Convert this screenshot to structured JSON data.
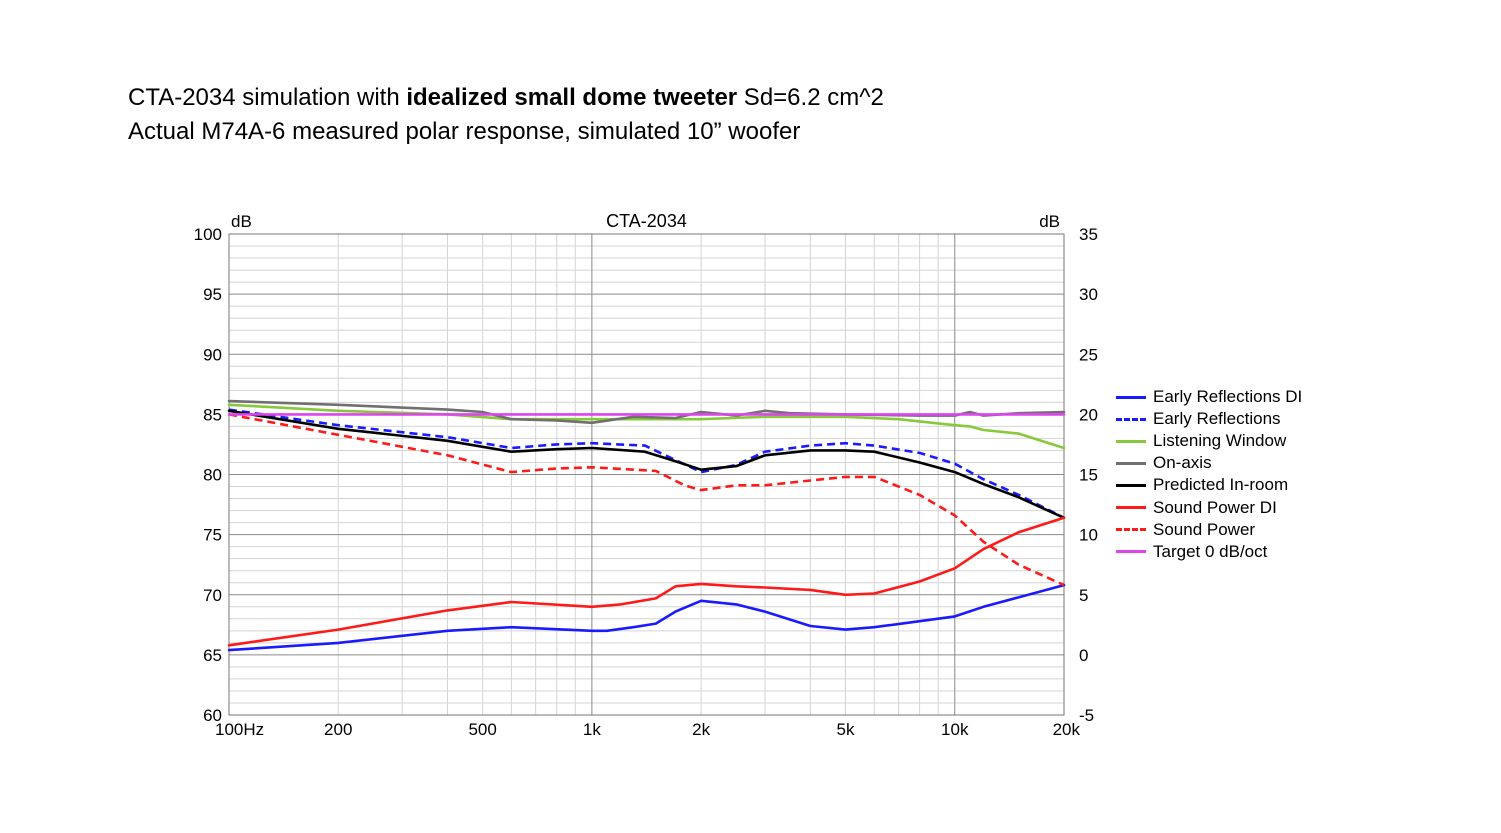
{
  "caption": {
    "line1_prefix": "CTA-2034 simulation with ",
    "line1_bold": "idealized small dome tweeter",
    "line1_suffix": " Sd=6.2 cm^2",
    "line2": "Actual M74A-6 measured polar response, simulated 10” woofer"
  },
  "chart_data": {
    "type": "line",
    "title": "CTA-2034",
    "y_left_unit": "dB",
    "y_right_unit": "dB",
    "x_scale": "log",
    "xlim": [
      100,
      20000
    ],
    "ylim_left": [
      60,
      100
    ],
    "ylim_right": [
      -5,
      35
    ],
    "grid": true,
    "legend_position": "right",
    "x_tick_values": [
      100,
      200,
      500,
      1000,
      2000,
      5000,
      10000,
      20000
    ],
    "x_tick_labels": [
      "100Hz",
      "200",
      "500",
      "1k",
      "2k",
      "5k",
      "10k",
      "20k"
    ],
    "y_left_ticks": [
      "100",
      "95",
      "90",
      "85",
      "80",
      "75",
      "70",
      "65",
      "60"
    ],
    "y_right_ticks": [
      "35",
      "30",
      "25",
      "20",
      "15",
      "10",
      "5",
      "0",
      "-5"
    ],
    "series": [
      {
        "name": "Early Reflections DI",
        "color": "#1a1aff",
        "dash": false,
        "axis": "right",
        "x": [
          100,
          200,
          400,
          600,
          1000,
          1100,
          1300,
          1500,
          1700,
          2000,
          2500,
          3000,
          4000,
          5000,
          6000,
          8000,
          10000,
          12000,
          20000
        ],
        "y": [
          0.4,
          1,
          2,
          2.3,
          2,
          2,
          2.3,
          2.6,
          3.6,
          4.5,
          4.2,
          3.6,
          2.4,
          2.1,
          2.3,
          2.8,
          3.2,
          4,
          5.8
        ]
      },
      {
        "name": "Early Reflections",
        "color": "#1a1aff",
        "dash": true,
        "axis": "left",
        "x": [
          100,
          200,
          400,
          600,
          800,
          1000,
          1400,
          1700,
          2000,
          2500,
          3000,
          4000,
          5000,
          6000,
          8000,
          10000,
          12000,
          15000,
          20000
        ],
        "y": [
          85.4,
          84.1,
          83.1,
          82.2,
          82.5,
          82.6,
          82.4,
          81.2,
          80.2,
          80.8,
          81.9,
          82.4,
          82.6,
          82.4,
          81.8,
          80.9,
          79.6,
          78.3,
          76.4
        ]
      },
      {
        "name": "Listening Window",
        "color": "#88c83c",
        "dash": false,
        "axis": "left",
        "x": [
          100,
          200,
          400,
          600,
          1000,
          2000,
          3000,
          5000,
          7000,
          10000,
          11000,
          12000,
          15000,
          20000
        ],
        "y": [
          85.8,
          85.3,
          85,
          84.6,
          84.6,
          84.6,
          84.8,
          84.8,
          84.6,
          84.1,
          84,
          83.7,
          83.4,
          82.2
        ]
      },
      {
        "name": "On-axis",
        "color": "#707070",
        "dash": false,
        "axis": "left",
        "x": [
          100,
          200,
          400,
          500,
          600,
          800,
          1000,
          1300,
          1700,
          2000,
          2500,
          3000,
          3500,
          5000,
          8000,
          10000,
          11000,
          12000,
          15000,
          20000
        ],
        "y": [
          86.1,
          85.8,
          85.4,
          85.2,
          84.6,
          84.5,
          84.3,
          84.8,
          84.7,
          85.2,
          84.9,
          85.3,
          85.1,
          85,
          84.9,
          84.9,
          85.2,
          84.9,
          85.1,
          85.2
        ]
      },
      {
        "name": "Predicted In-room",
        "color": "#000000",
        "dash": false,
        "axis": "left",
        "x": [
          100,
          200,
          400,
          600,
          800,
          1000,
          1400,
          1700,
          2000,
          2500,
          3000,
          4000,
          5000,
          6000,
          8000,
          10000,
          12000,
          15000,
          20000
        ],
        "y": [
          85.3,
          83.8,
          82.8,
          81.9,
          82.1,
          82.2,
          81.9,
          81.1,
          80.4,
          80.7,
          81.6,
          82,
          82,
          81.9,
          81,
          80.2,
          79.2,
          78.1,
          76.4
        ]
      },
      {
        "name": "Sound Power DI",
        "color": "#ff1a1a",
        "dash": false,
        "axis": "right",
        "x": [
          100,
          200,
          400,
          600,
          1000,
          1200,
          1500,
          1700,
          2000,
          2500,
          3000,
          4000,
          5000,
          6000,
          8000,
          10000,
          12000,
          15000,
          20000
        ],
        "y": [
          0.8,
          2.1,
          3.7,
          4.4,
          4,
          4.2,
          4.7,
          5.7,
          5.9,
          5.7,
          5.6,
          5.4,
          5,
          5.1,
          6.1,
          7.2,
          8.8,
          10.2,
          11.4
        ]
      },
      {
        "name": "Sound Power",
        "color": "#ff1a1a",
        "dash": true,
        "axis": "left",
        "x": [
          100,
          200,
          400,
          600,
          800,
          1000,
          1500,
          1800,
          2000,
          2500,
          3000,
          4000,
          5000,
          6000,
          8000,
          10000,
          12000,
          15000,
          20000
        ],
        "y": [
          85,
          83.3,
          81.6,
          80.2,
          80.5,
          80.6,
          80.3,
          79.1,
          78.7,
          79.1,
          79.1,
          79.5,
          79.8,
          79.8,
          78.3,
          76.6,
          74.4,
          72.5,
          70.8
        ]
      },
      {
        "name": "Target 0 dB/oct",
        "color": "#dd44ee",
        "dash": false,
        "axis": "left",
        "x": [
          100,
          20000
        ],
        "y": [
          85,
          85
        ]
      }
    ]
  }
}
